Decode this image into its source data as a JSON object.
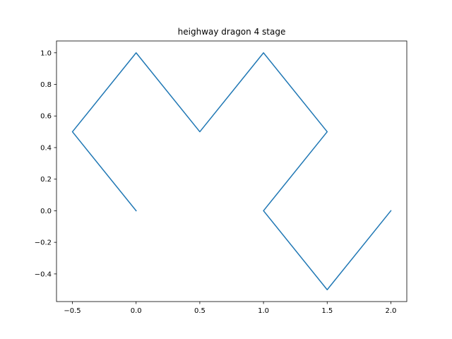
{
  "chart_data": {
    "type": "line",
    "title": "heighway dragon 4 stage",
    "xlabel": "",
    "ylabel": "",
    "xlim": [
      -0.625,
      2.125
    ],
    "ylim": [
      -0.575,
      1.075
    ],
    "x_ticks": [
      -0.5,
      0.0,
      0.5,
      1.0,
      1.5,
      2.0
    ],
    "x_tick_labels": [
      "−0.5",
      "0.0",
      "0.5",
      "1.0",
      "1.5",
      "2.0"
    ],
    "y_ticks": [
      -0.4,
      -0.2,
      0.0,
      0.2,
      0.4,
      0.6,
      0.8,
      1.0
    ],
    "y_tick_labels": [
      "−0.4",
      "−0.2",
      "0.0",
      "0.2",
      "0.4",
      "0.6",
      "0.8",
      "1.0"
    ],
    "grid": false,
    "series": [
      {
        "color": "#1f77b4",
        "x": [
          0.0,
          -0.5,
          0.0,
          0.5,
          1.0,
          1.5,
          1.0,
          1.5,
          2.0
        ],
        "y": [
          0.0,
          0.5,
          1.0,
          0.5,
          1.0,
          0.5,
          0.0,
          -0.5,
          0.0
        ]
      }
    ]
  }
}
